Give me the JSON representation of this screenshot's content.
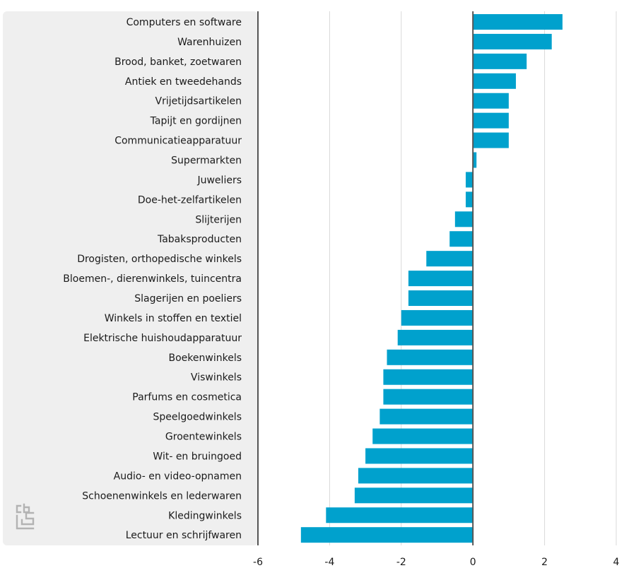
{
  "chart_data": {
    "type": "bar",
    "orientation": "horizontal",
    "title": "",
    "xlabel": "",
    "ylabel": "",
    "xlim": [
      -6,
      4
    ],
    "ticks": [
      -6,
      -4,
      -2,
      0,
      2,
      4
    ],
    "tick_labels": [
      "-6",
      "-4",
      "-2",
      "0",
      "2",
      "4"
    ],
    "grid": true,
    "categories": [
      "Computers en software",
      "Warenhuizen",
      "Brood, banket, zoetwaren",
      "Antiek en tweedehands",
      "Vrijetijdsartikelen",
      "Tapijt en gordijnen",
      "Communicatieapparatuur",
      "Supermarkten",
      "Juweliers",
      "Doe-het-zelfartikelen",
      "Slijterijen",
      "Tabaksproducten",
      "Drogisten, orthopedische winkels",
      "Bloemen-, dierenwinkels, tuincentra",
      "Slagerijen en poeliers",
      "Winkels in stoffen en textiel",
      "Elektrische huishoudapparatuur",
      "Boekenwinkels",
      "Viswinkels",
      "Parfums en cosmetica",
      "Speelgoedwinkels",
      "Groentewinkels",
      "Wit- en bruingoed",
      "Audio- en video-opnamen",
      "Schoenenwinkels en lederwaren",
      "Kledingwinkels",
      "Lectuur en schrijfwaren"
    ],
    "values": [
      2.5,
      2.2,
      1.5,
      1.2,
      1.0,
      1.0,
      1.0,
      0.1,
      -0.2,
      -0.2,
      -0.5,
      -0.65,
      -1.3,
      -1.8,
      -1.8,
      -2.0,
      -2.1,
      -2.4,
      -2.5,
      -2.5,
      -2.6,
      -2.8,
      -3.0,
      -3.2,
      -3.3,
      -4.1,
      -4.8
    ],
    "colors": {
      "bar": "#00a1cd",
      "label_panel": "#efefef",
      "grid": "#d9d9d9",
      "zero_line": "#555555",
      "text": "#1a1a1a",
      "logo": "#b3b3b3"
    }
  },
  "logo": {
    "name": "cbs-logo-icon"
  }
}
